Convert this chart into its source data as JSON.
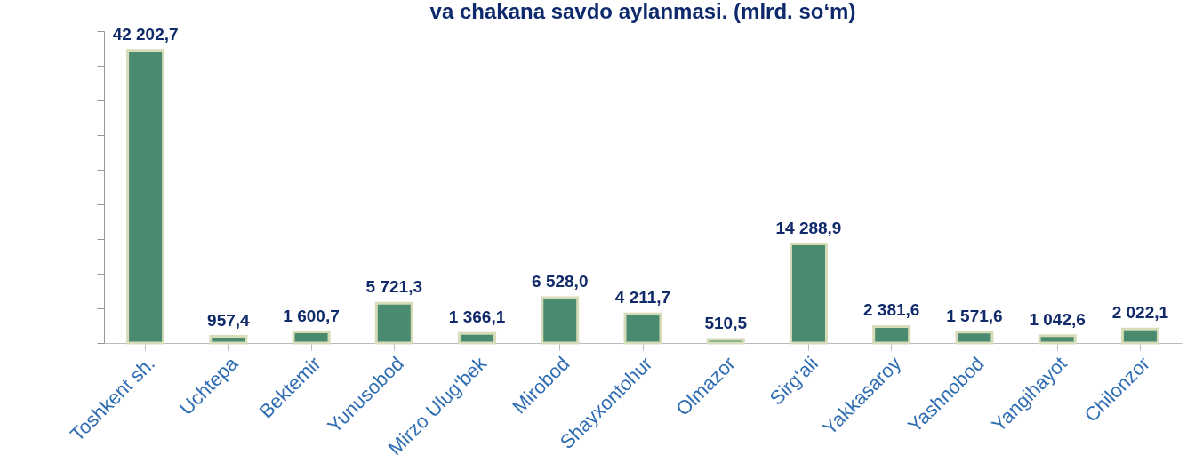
{
  "chart_data": {
    "type": "bar",
    "title": "va chakana savdo aylanmasi. (mlrd. so‘m)",
    "categories": [
      "Toshkent sh.",
      "Uchtepa",
      "Bektemir",
      "Yunusobod",
      "Mirzo Ulug‘bek",
      "Mirobod",
      "Shayxontohur",
      "Olmazor",
      "Sirg‘ali",
      "Yakkasaroy",
      "Yashnobod",
      "Yangihayot",
      "Chilonzor"
    ],
    "values": [
      42202.7,
      957.4,
      1600.7,
      5721.3,
      1366.1,
      6528.0,
      4211.7,
      510.5,
      14288.9,
      2381.6,
      1571.6,
      1042.6,
      2022.1
    ],
    "value_labels": [
      "42 202,7",
      "957,4",
      "1 600,7",
      "5 721,3",
      "1 366,1",
      "6 528,0",
      "4 211,7",
      "510,5",
      "14 288,9",
      "2 381,6",
      "1 571,6",
      "1 042,6",
      "2 022,1"
    ],
    "color": "#4a8a6e",
    "ylim": [
      0,
      45000
    ],
    "yticks": [
      {
        "value": 0,
        "label": null
      },
      {
        "value": 5000,
        "label": null
      },
      {
        "value": 10000,
        "label": null
      },
      {
        "value": 15000,
        "label": null
      },
      {
        "value": 20000,
        "label": null
      },
      {
        "value": 25000,
        "label": null
      },
      {
        "value": 30000,
        "label": null
      },
      {
        "value": 35000,
        "label": null
      },
      {
        "value": 40000,
        "label": null
      },
      {
        "value": 45000,
        "label": null
      }
    ],
    "tick_labels": "x",
    "grid": false
  }
}
